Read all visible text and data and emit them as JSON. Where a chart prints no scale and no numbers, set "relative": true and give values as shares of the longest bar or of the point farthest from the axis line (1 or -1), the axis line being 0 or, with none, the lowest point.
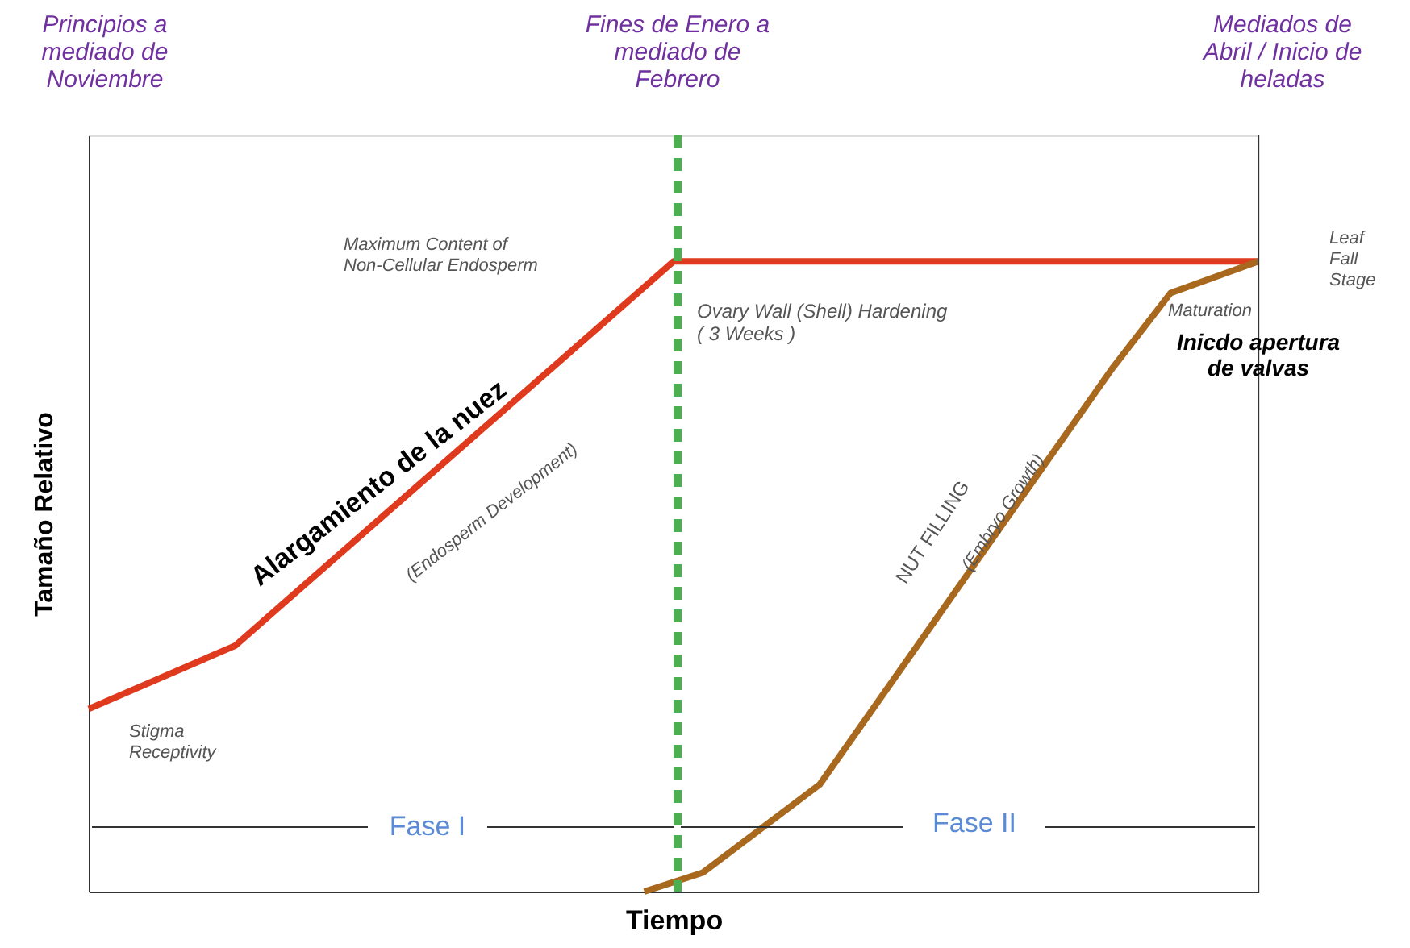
{
  "chart_data": {
    "type": "line",
    "relative": true,
    "xlabel": "Tiempo",
    "ylabel": "Tamaño Relativo",
    "categories": [
      null,
      null,
      null,
      null,
      null,
      null,
      null,
      null,
      null,
      null,
      null,
      null,
      null,
      null,
      null,
      null,
      null,
      null,
      null,
      null,
      null,
      null,
      null,
      null,
      null,
      null,
      null,
      null,
      null,
      null,
      null,
      null,
      null,
      null,
      null,
      null,
      null,
      null,
      null,
      null,
      null
    ],
    "series": [
      {
        "color": "#e03a1e",
        "values": [
          0.29,
          null,
          null,
          null,
          null,
          0.39,
          null,
          null,
          null,
          null,
          null,
          null,
          null,
          null,
          null,
          null,
          null,
          null,
          null,
          null,
          1,
          null,
          null,
          null,
          null,
          null,
          null,
          null,
          null,
          null,
          null,
          null,
          null,
          null,
          null,
          null,
          null,
          null,
          null,
          null,
          1
        ]
      },
      {
        "color": "#a8691f",
        "values": [
          null,
          null,
          null,
          null,
          null,
          null,
          null,
          null,
          null,
          null,
          null,
          null,
          null,
          null,
          null,
          null,
          null,
          null,
          null,
          0,
          null,
          0.03,
          null,
          null,
          null,
          0.17,
          null,
          null,
          null,
          null,
          null,
          null,
          null,
          null,
          null,
          0.83,
          null,
          0.95,
          null,
          null,
          1
        ]
      }
    ],
    "annotations": [
      "Principios a\nmediado de\nNoviembre",
      "Mediados de\nAbril / Inicio de\nheladas",
      "Maximum Content of\nNon-Cellular Endosperm",
      "Ovary Wall (Shell) Hardening\n( 3 Weeks )",
      "Leaf\nFall\nStage",
      "Maturation",
      "Inicdo apertura\nde valvas",
      "Alargamiento de la nuez",
      "(Endosperm Development)",
      "NUT FILLING",
      "(Embryo Growth)",
      "Stigma\nReceptivity",
      "Fines de Enero a\nmediado de\nFebrero",
      "Fase I",
      "Fase II"
    ],
    "grid": false,
    "marker": "none",
    "line_style": "solid"
  }
}
